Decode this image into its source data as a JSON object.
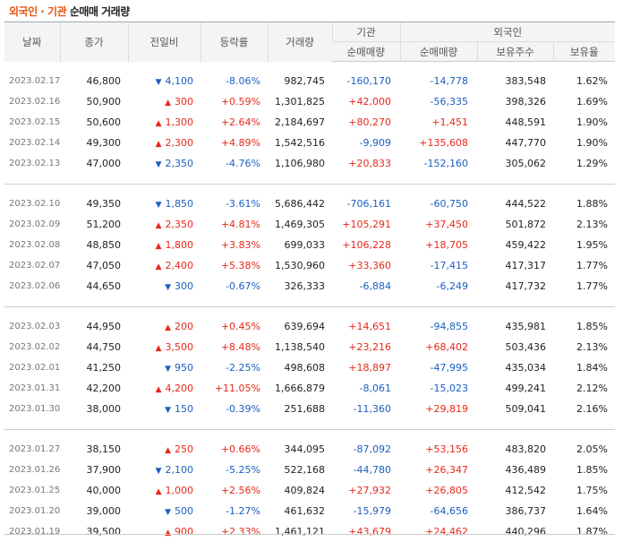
{
  "title": {
    "part1": "외국인 · 기관",
    "part2": "순매매 거래량"
  },
  "headers": {
    "date": "날짜",
    "close": "종가",
    "change": "전일비",
    "rate": "등락률",
    "volume": "거래량",
    "inst_group": "기관",
    "foreign_group": "외국인",
    "inst_net": "순매매량",
    "foreign_net": "순매매량",
    "foreign_holdings": "보유주수",
    "foreign_ratio": "보유율"
  },
  "colors": {
    "up": "#e8281a",
    "down": "#1b5fc1",
    "accent": "#e8540e"
  },
  "groups": [
    [
      {
        "date": "2023.02.17",
        "close": "46,800",
        "dir": "down",
        "change": "4,100",
        "rate": "-8.06%",
        "volume": "982,745",
        "inst": "-160,170",
        "foreign": "-14,778",
        "holdings": "383,548",
        "ratio": "1.62%"
      },
      {
        "date": "2023.02.16",
        "close": "50,900",
        "dir": "up",
        "change": "300",
        "rate": "+0.59%",
        "volume": "1,301,825",
        "inst": "+42,000",
        "foreign": "-56,335",
        "holdings": "398,326",
        "ratio": "1.69%"
      },
      {
        "date": "2023.02.15",
        "close": "50,600",
        "dir": "up",
        "change": "1,300",
        "rate": "+2.64%",
        "volume": "2,184,697",
        "inst": "+80,270",
        "foreign": "+1,451",
        "holdings": "448,591",
        "ratio": "1.90%"
      },
      {
        "date": "2023.02.14",
        "close": "49,300",
        "dir": "up",
        "change": "2,300",
        "rate": "+4.89%",
        "volume": "1,542,516",
        "inst": "-9,909",
        "foreign": "+135,608",
        "holdings": "447,770",
        "ratio": "1.90%"
      },
      {
        "date": "2023.02.13",
        "close": "47,000",
        "dir": "down",
        "change": "2,350",
        "rate": "-4.76%",
        "volume": "1,106,980",
        "inst": "+20,833",
        "foreign": "-152,160",
        "holdings": "305,062",
        "ratio": "1.29%"
      }
    ],
    [
      {
        "date": "2023.02.10",
        "close": "49,350",
        "dir": "down",
        "change": "1,850",
        "rate": "-3.61%",
        "volume": "5,686,442",
        "inst": "-706,161",
        "foreign": "-60,750",
        "holdings": "444,522",
        "ratio": "1.88%"
      },
      {
        "date": "2023.02.09",
        "close": "51,200",
        "dir": "up",
        "change": "2,350",
        "rate": "+4.81%",
        "volume": "1,469,305",
        "inst": "+105,291",
        "foreign": "+37,450",
        "holdings": "501,872",
        "ratio": "2.13%"
      },
      {
        "date": "2023.02.08",
        "close": "48,850",
        "dir": "up",
        "change": "1,800",
        "rate": "+3.83%",
        "volume": "699,033",
        "inst": "+106,228",
        "foreign": "+18,705",
        "holdings": "459,422",
        "ratio": "1.95%"
      },
      {
        "date": "2023.02.07",
        "close": "47,050",
        "dir": "up",
        "change": "2,400",
        "rate": "+5.38%",
        "volume": "1,530,960",
        "inst": "+33,360",
        "foreign": "-17,415",
        "holdings": "417,317",
        "ratio": "1.77%"
      },
      {
        "date": "2023.02.06",
        "close": "44,650",
        "dir": "down",
        "change": "300",
        "rate": "-0.67%",
        "volume": "326,333",
        "inst": "-6,884",
        "foreign": "-6,249",
        "holdings": "417,732",
        "ratio": "1.77%"
      }
    ],
    [
      {
        "date": "2023.02.03",
        "close": "44,950",
        "dir": "up",
        "change": "200",
        "rate": "+0.45%",
        "volume": "639,694",
        "inst": "+14,651",
        "foreign": "-94,855",
        "holdings": "435,981",
        "ratio": "1.85%"
      },
      {
        "date": "2023.02.02",
        "close": "44,750",
        "dir": "up",
        "change": "3,500",
        "rate": "+8.48%",
        "volume": "1,138,540",
        "inst": "+23,216",
        "foreign": "+68,402",
        "holdings": "503,436",
        "ratio": "2.13%"
      },
      {
        "date": "2023.02.01",
        "close": "41,250",
        "dir": "down",
        "change": "950",
        "rate": "-2.25%",
        "volume": "498,608",
        "inst": "+18,897",
        "foreign": "-47,995",
        "holdings": "435,034",
        "ratio": "1.84%"
      },
      {
        "date": "2023.01.31",
        "close": "42,200",
        "dir": "up",
        "change": "4,200",
        "rate": "+11.05%",
        "volume": "1,666,879",
        "inst": "-8,061",
        "foreign": "-15,023",
        "holdings": "499,241",
        "ratio": "2.12%"
      },
      {
        "date": "2023.01.30",
        "close": "38,000",
        "dir": "down",
        "change": "150",
        "rate": "-0.39%",
        "volume": "251,688",
        "inst": "-11,360",
        "foreign": "+29,819",
        "holdings": "509,041",
        "ratio": "2.16%"
      }
    ],
    [
      {
        "date": "2023.01.27",
        "close": "38,150",
        "dir": "up",
        "change": "250",
        "rate": "+0.66%",
        "volume": "344,095",
        "inst": "-87,092",
        "foreign": "+53,156",
        "holdings": "483,820",
        "ratio": "2.05%"
      },
      {
        "date": "2023.01.26",
        "close": "37,900",
        "dir": "down",
        "change": "2,100",
        "rate": "-5.25%",
        "volume": "522,168",
        "inst": "-44,780",
        "foreign": "+26,347",
        "holdings": "436,489",
        "ratio": "1.85%"
      },
      {
        "date": "2023.01.25",
        "close": "40,000",
        "dir": "up",
        "change": "1,000",
        "rate": "+2.56%",
        "volume": "409,824",
        "inst": "+27,932",
        "foreign": "+26,805",
        "holdings": "412,542",
        "ratio": "1.75%"
      },
      {
        "date": "2023.01.20",
        "close": "39,000",
        "dir": "down",
        "change": "500",
        "rate": "-1.27%",
        "volume": "461,632",
        "inst": "-15,979",
        "foreign": "-64,656",
        "holdings": "386,737",
        "ratio": "1.64%"
      },
      {
        "date": "2023.01.19",
        "close": "39,500",
        "dir": "up",
        "change": "900",
        "rate": "+2.33%",
        "volume": "1,461,121",
        "inst": "+43,679",
        "foreign": "+24,462",
        "holdings": "440,296",
        "ratio": "1.87%"
      }
    ]
  ]
}
